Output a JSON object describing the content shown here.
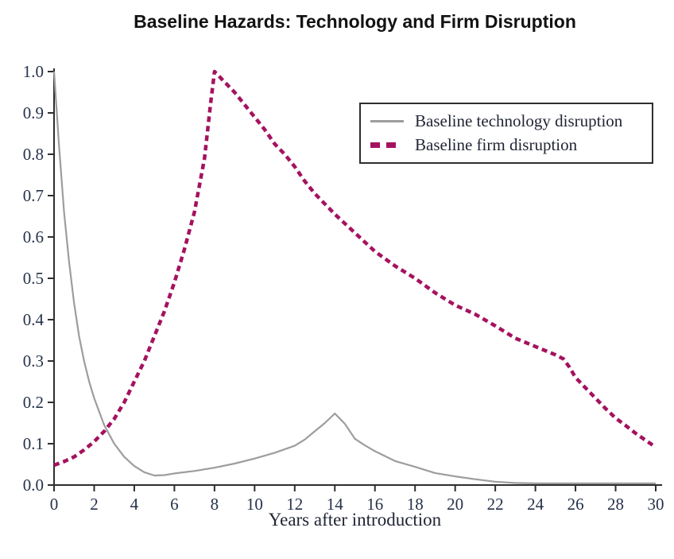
{
  "title": "Baseline Hazards: Technology and Firm Disruption",
  "colors": {
    "background": "#ffffff",
    "technology_line": "#9d9d9d",
    "firm_line": "#a4125f",
    "axis": "#2e2e2e",
    "tick_label": "#26324b",
    "text": "#1f2433",
    "legend_border": "#2e2e2e"
  },
  "legend": {
    "position": "upper right",
    "entries": [
      {
        "label": "Baseline technology disruption",
        "style": "solid",
        "color": "#9d9d9d"
      },
      {
        "label": "Baseline firm disruption",
        "style": "dashed",
        "color": "#a4125f"
      }
    ]
  },
  "chart_data": {
    "type": "line",
    "title": "Baseline Hazards: Technology and Firm Disruption",
    "xlabel": "Years after introduction",
    "ylabel": "",
    "xlim": [
      0,
      30
    ],
    "ylim": [
      0,
      1.0
    ],
    "x_ticks": [
      0,
      2,
      4,
      6,
      8,
      10,
      12,
      14,
      16,
      18,
      20,
      22,
      24,
      26,
      28,
      30
    ],
    "y_ticks": [
      0.0,
      0.1,
      0.2,
      0.3,
      0.4,
      0.5,
      0.6,
      0.7,
      0.8,
      0.9,
      1.0
    ],
    "grid": false,
    "legend_position": "upper right",
    "series": [
      {
        "name": "Baseline technology disruption",
        "color": "#9d9d9d",
        "style": "solid",
        "width": 2.2,
        "x": [
          0,
          0.25,
          0.5,
          0.75,
          1,
          1.25,
          1.5,
          1.75,
          2,
          2.5,
          3,
          3.5,
          4,
          4.5,
          5,
          5.5,
          6,
          7,
          8,
          9,
          10,
          11,
          12,
          12.5,
          13,
          13.5,
          14,
          14.5,
          15,
          15.5,
          16,
          17,
          18,
          19,
          20,
          21,
          22,
          23,
          24,
          26,
          28,
          30
        ],
        "y": [
          1.0,
          0.82,
          0.66,
          0.54,
          0.44,
          0.36,
          0.3,
          0.25,
          0.21,
          0.145,
          0.1,
          0.068,
          0.046,
          0.031,
          0.023,
          0.024,
          0.028,
          0.034,
          0.042,
          0.052,
          0.064,
          0.078,
          0.095,
          0.11,
          0.13,
          0.15,
          0.173,
          0.148,
          0.112,
          0.096,
          0.082,
          0.058,
          0.044,
          0.029,
          0.021,
          0.014,
          0.008,
          0.005,
          0.004,
          0.004,
          0.004,
          0.004
        ]
      },
      {
        "name": "Baseline firm disruption",
        "color": "#a4125f",
        "style": "dashed",
        "width": 4.5,
        "x": [
          0,
          0.5,
          1,
          1.5,
          2,
          2.5,
          3,
          3.5,
          4,
          4.5,
          5,
          5.5,
          6,
          6.5,
          7,
          7.5,
          7.8,
          8,
          8.5,
          9,
          9.5,
          10,
          10.5,
          11,
          11.5,
          12,
          12.5,
          13,
          13.5,
          14,
          15,
          16,
          17,
          18,
          19,
          20,
          21,
          22,
          23,
          24,
          24.5,
          25,
          25.4,
          25.7,
          26,
          26.5,
          27,
          27.5,
          28,
          28.5,
          29,
          29.5,
          30
        ],
        "y": [
          0.048,
          0.057,
          0.068,
          0.085,
          0.105,
          0.13,
          0.16,
          0.2,
          0.25,
          0.3,
          0.36,
          0.42,
          0.49,
          0.57,
          0.66,
          0.79,
          0.92,
          1.0,
          0.975,
          0.95,
          0.92,
          0.89,
          0.86,
          0.825,
          0.8,
          0.77,
          0.735,
          0.705,
          0.68,
          0.655,
          0.61,
          0.565,
          0.53,
          0.5,
          0.465,
          0.435,
          0.413,
          0.385,
          0.355,
          0.335,
          0.325,
          0.315,
          0.305,
          0.285,
          0.26,
          0.235,
          0.21,
          0.185,
          0.162,
          0.144,
          0.125,
          0.108,
          0.092
        ]
      }
    ]
  }
}
